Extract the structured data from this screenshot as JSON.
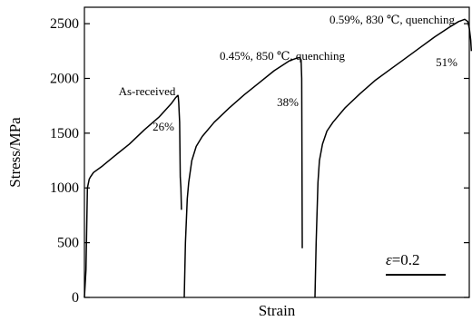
{
  "chart_data": {
    "type": "line",
    "xlabel": "Strain",
    "ylabel": "Stress/MPa",
    "ylim": [
      0,
      2650
    ],
    "yticks": [
      0,
      500,
      1000,
      1500,
      2000,
      2500
    ],
    "ytick_labels": [
      "0",
      "500",
      "1000",
      "1500",
      "2000",
      "2500"
    ],
    "xticks_shown": false,
    "grid": false,
    "legend": "none",
    "series": [
      {
        "name": "As-received",
        "elongation_label": "26%",
        "x": [
          0.0,
          0.005,
          0.01,
          0.016,
          0.02,
          0.03,
          0.06,
          0.1,
          0.15,
          0.2,
          0.25,
          0.29,
          0.305,
          0.31,
          0.312,
          0.313,
          0.315,
          0.318,
          0.32,
          0.322,
          0.324
        ],
        "y": [
          0,
          250,
          1000,
          1080,
          1100,
          1140,
          1200,
          1290,
          1400,
          1530,
          1650,
          1770,
          1825,
          1840,
          1845,
          1840,
          1780,
          1600,
          1100,
          1000,
          800
        ]
      },
      {
        "name": "0.45%, 850 ℃, quenching",
        "elongation_label": "38%",
        "x": [
          0.0,
          0.004,
          0.01,
          0.015,
          0.025,
          0.04,
          0.06,
          0.1,
          0.15,
          0.2,
          0.25,
          0.3,
          0.35,
          0.375,
          0.385,
          0.39,
          0.392,
          0.394
        ],
        "y": [
          0,
          500,
          900,
          1050,
          1250,
          1380,
          1470,
          1600,
          1730,
          1850,
          1960,
          2070,
          2160,
          2185,
          2190,
          2170,
          2000,
          450
        ]
      },
      {
        "name": "0.59%, 830 ℃, quenching",
        "elongation_label": "51%",
        "x": [
          0.0,
          0.004,
          0.01,
          0.015,
          0.025,
          0.04,
          0.06,
          0.1,
          0.15,
          0.2,
          0.25,
          0.3,
          0.35,
          0.4,
          0.45,
          0.48,
          0.5,
          0.51,
          0.515,
          0.52,
          0.522
        ],
        "y": [
          0,
          500,
          1050,
          1250,
          1400,
          1520,
          1600,
          1730,
          1860,
          1980,
          2080,
          2180,
          2280,
          2380,
          2470,
          2520,
          2540,
          2520,
          2460,
          2350,
          2250
        ]
      }
    ],
    "annotations": [
      {
        "text": "As-received"
      },
      {
        "text": "0.45%, 850 ℃, quenching"
      },
      {
        "text": "0.59%, 830 ℃, quenching"
      }
    ],
    "scale_bar_symbol": "ε",
    "scale_bar_value": "=0.2",
    "scale_bar_strain": 0.2
  }
}
